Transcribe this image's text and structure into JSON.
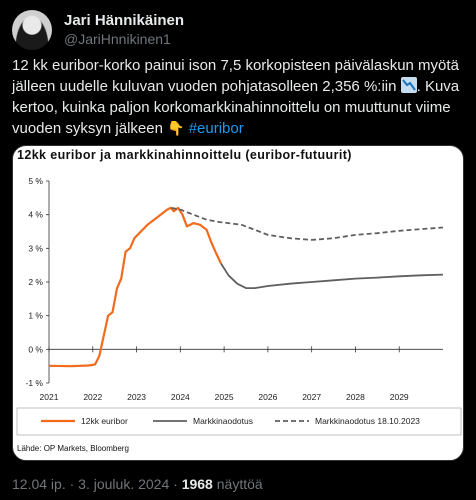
{
  "author": {
    "name": "Jari Hännikäinen",
    "handle": "@JariHnnikinen1"
  },
  "tweet": {
    "text_main": "12 kk euribor-korko painui ison 7,5 korkopisteen päivälaskun myötä jälleen uudelle kuluvan vuoden pohjatasolleen 2,356 %:iin ",
    "text_after_emoji": ". Kuva kertoo, kuinka paljon korkomarkkinahinnoittelu on muuttunut viime vuoden syksyn jälkeen ",
    "hashtag": "#euribor",
    "emoji_1": "chart-decreasing-icon",
    "emoji_2": "pointing-down-icon"
  },
  "chart_data": {
    "type": "line",
    "title": "12kk euribor ja markkinahinnoittelu (euribor-futuurit)",
    "xlabel": "",
    "ylabel": "",
    "x_ticks": [
      "2021",
      "2022",
      "2023",
      "2024",
      "2025",
      "2026",
      "2027",
      "2028",
      "2029"
    ],
    "y_ticks": [
      "5 %",
      "4 %",
      "3 %",
      "2 %",
      "1 %",
      "0 %",
      "-1 %"
    ],
    "xlim": [
      2021,
      2030
    ],
    "ylim": [
      -1,
      5
    ],
    "grid": false,
    "legend_position": "bottom",
    "series": [
      {
        "name": "12kk euribor",
        "color": "#f26b1d",
        "style": "solid",
        "x": [
          2021.0,
          2021.5,
          2021.9,
          2022.05,
          2022.15,
          2022.25,
          2022.35,
          2022.45,
          2022.55,
          2022.65,
          2022.75,
          2022.85,
          2022.95,
          2023.1,
          2023.25,
          2023.4,
          2023.55,
          2023.7,
          2023.78,
          2023.85,
          2023.95,
          2024.05,
          2024.15,
          2024.3,
          2024.45,
          2024.6,
          2024.7,
          2024.8,
          2024.93
        ],
        "y": [
          -0.49,
          -0.5,
          -0.48,
          -0.45,
          -0.2,
          0.4,
          1.0,
          1.1,
          1.8,
          2.1,
          2.9,
          3.0,
          3.3,
          3.5,
          3.7,
          3.85,
          4.0,
          4.15,
          4.2,
          4.1,
          4.2,
          4.0,
          3.65,
          3.75,
          3.7,
          3.55,
          3.2,
          2.9,
          2.55
        ]
      },
      {
        "name": "Markkinaodotus",
        "color": "#5f5f5f",
        "style": "solid",
        "x": [
          2024.93,
          2025.1,
          2025.3,
          2025.5,
          2025.7,
          2026.0,
          2026.5,
          2027.0,
          2027.5,
          2028.0,
          2028.5,
          2029.0,
          2029.5,
          2030.0
        ],
        "y": [
          2.55,
          2.2,
          1.95,
          1.82,
          1.82,
          1.88,
          1.95,
          2.0,
          2.05,
          2.1,
          2.13,
          2.17,
          2.2,
          2.22
        ]
      },
      {
        "name": "Markkinaodotus 18.10.2023",
        "color": "#5f5f5f",
        "style": "dashed",
        "x": [
          2023.8,
          2024.0,
          2024.3,
          2024.6,
          2024.9,
          2025.1,
          2025.4,
          2025.7,
          2026.0,
          2026.5,
          2027.0,
          2027.5,
          2028.0,
          2028.5,
          2029.0,
          2029.5,
          2030.0
        ],
        "y": [
          4.2,
          4.15,
          4.0,
          3.85,
          3.78,
          3.75,
          3.7,
          3.55,
          3.4,
          3.3,
          3.25,
          3.3,
          3.4,
          3.45,
          3.52,
          3.57,
          3.62
        ]
      }
    ],
    "source": "Lähde: OP Markets, Bloomberg"
  },
  "meta": {
    "time": "12.04 ip.",
    "separator": "·",
    "date": "3. jouluk. 2024",
    "views_count": "1968",
    "views_label": "näyttöä"
  }
}
